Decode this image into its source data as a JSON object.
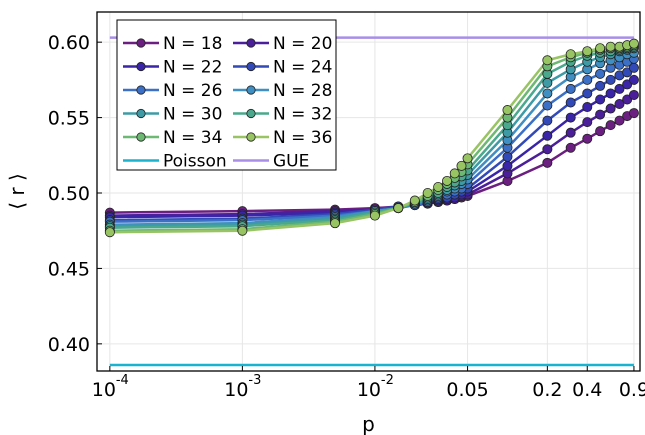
{
  "chart_data": {
    "type": "line",
    "xlabel": "p",
    "ylabel": "⟨ r ⟩",
    "x_scale": "log",
    "xlim": [
      8e-05,
      1.0
    ],
    "ylim": [
      0.382,
      0.62
    ],
    "grid": true,
    "legend_position": "top-left",
    "x_ticks": [
      {
        "value": 0.0001,
        "label": "10",
        "exp": "-4"
      },
      {
        "value": 0.001,
        "label": "10",
        "exp": "-3"
      },
      {
        "value": 0.01,
        "label": "10",
        "exp": "-2"
      },
      {
        "value": 0.05,
        "label": "0.05",
        "exp": ""
      },
      {
        "value": 0.2,
        "label": "0.2",
        "exp": ""
      },
      {
        "value": 0.4,
        "label": "0.4",
        "exp": ""
      },
      {
        "value": 0.9,
        "label": "0.9",
        "exp": ""
      }
    ],
    "y_ticks": [
      {
        "value": 0.4,
        "label": "0.40"
      },
      {
        "value": 0.45,
        "label": "0.45"
      },
      {
        "value": 0.5,
        "label": "0.50"
      },
      {
        "value": 0.55,
        "label": "0.55"
      },
      {
        "value": 0.6,
        "label": "0.60"
      }
    ],
    "x": [
      0.0001,
      0.001,
      0.005,
      0.01,
      0.015,
      0.02,
      0.025,
      0.03,
      0.035,
      0.04,
      0.045,
      0.05,
      0.1,
      0.2,
      0.3,
      0.4,
      0.5,
      0.6,
      0.7,
      0.8,
      0.9
    ],
    "series": [
      {
        "name": "N = 18",
        "color": "#6b1f80",
        "values": [
          0.487,
          0.488,
          0.489,
          0.49,
          0.491,
          0.492,
          0.493,
          0.494,
          0.495,
          0.496,
          0.497,
          0.498,
          0.508,
          0.52,
          0.53,
          0.536,
          0.541,
          0.545,
          0.548,
          0.551,
          0.553
        ]
      },
      {
        "name": "N = 20",
        "color": "#4b1f99",
        "values": [
          0.485,
          0.486,
          0.488,
          0.489,
          0.491,
          0.492,
          0.493,
          0.494,
          0.495,
          0.496,
          0.498,
          0.499,
          0.513,
          0.529,
          0.54,
          0.547,
          0.552,
          0.556,
          0.559,
          0.562,
          0.565
        ]
      },
      {
        "name": "N = 22",
        "color": "#3a25a8",
        "values": [
          0.484,
          0.485,
          0.487,
          0.489,
          0.491,
          0.492,
          0.493,
          0.495,
          0.496,
          0.497,
          0.499,
          0.501,
          0.518,
          0.538,
          0.55,
          0.557,
          0.562,
          0.566,
          0.569,
          0.572,
          0.575
        ]
      },
      {
        "name": "N = 24",
        "color": "#3249b8",
        "values": [
          0.482,
          0.483,
          0.486,
          0.489,
          0.491,
          0.492,
          0.494,
          0.496,
          0.497,
          0.499,
          0.501,
          0.503,
          0.524,
          0.548,
          0.56,
          0.566,
          0.571,
          0.575,
          0.578,
          0.58,
          0.583
        ]
      },
      {
        "name": "N = 26",
        "color": "#3b70c6",
        "values": [
          0.481,
          0.482,
          0.485,
          0.488,
          0.49,
          0.492,
          0.494,
          0.497,
          0.499,
          0.501,
          0.503,
          0.506,
          0.53,
          0.558,
          0.569,
          0.575,
          0.579,
          0.583,
          0.585,
          0.587,
          0.589
        ]
      },
      {
        "name": "N = 28",
        "color": "#3f8fc2",
        "values": [
          0.479,
          0.48,
          0.484,
          0.488,
          0.49,
          0.493,
          0.495,
          0.498,
          0.501,
          0.503,
          0.506,
          0.509,
          0.535,
          0.566,
          0.577,
          0.582,
          0.586,
          0.588,
          0.59,
          0.592,
          0.593
        ]
      },
      {
        "name": "N = 30",
        "color": "#3e9ba6",
        "values": [
          0.478,
          0.479,
          0.483,
          0.488,
          0.49,
          0.493,
          0.496,
          0.499,
          0.502,
          0.505,
          0.508,
          0.512,
          0.54,
          0.573,
          0.582,
          0.587,
          0.59,
          0.592,
          0.594,
          0.595,
          0.596
        ]
      },
      {
        "name": "N = 32",
        "color": "#4aa88c",
        "values": [
          0.477,
          0.478,
          0.482,
          0.487,
          0.49,
          0.494,
          0.497,
          0.5,
          0.504,
          0.507,
          0.511,
          0.515,
          0.545,
          0.579,
          0.587,
          0.591,
          0.593,
          0.594,
          0.595,
          0.596,
          0.597
        ]
      },
      {
        "name": "N = 34",
        "color": "#6db873",
        "values": [
          0.475,
          0.476,
          0.481,
          0.486,
          0.49,
          0.494,
          0.498,
          0.502,
          0.506,
          0.51,
          0.514,
          0.519,
          0.55,
          0.584,
          0.59,
          0.593,
          0.595,
          0.596,
          0.596,
          0.597,
          0.598
        ]
      },
      {
        "name": "N = 36",
        "color": "#98c464",
        "values": [
          0.474,
          0.475,
          0.48,
          0.485,
          0.49,
          0.495,
          0.5,
          0.504,
          0.508,
          0.513,
          0.518,
          0.523,
          0.555,
          0.588,
          0.592,
          0.594,
          0.596,
          0.597,
          0.597,
          0.598,
          0.599
        ]
      }
    ],
    "reference_lines": [
      {
        "name": "Poisson",
        "color": "#1ab3cf",
        "y": 0.386
      },
      {
        "name": "GUE",
        "color": "#a88ee8",
        "y": 0.603
      }
    ]
  }
}
